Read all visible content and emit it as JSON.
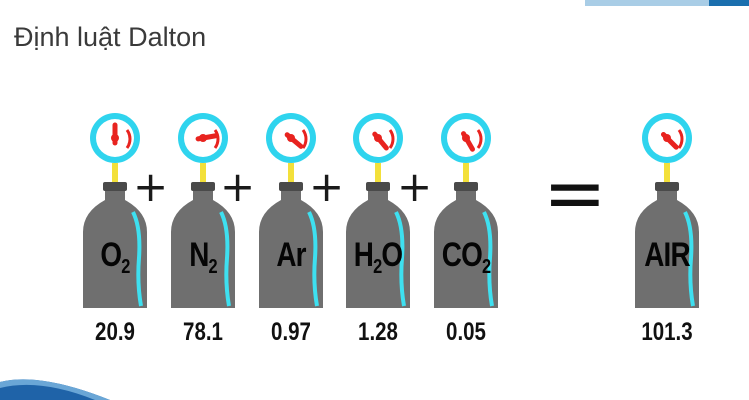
{
  "title": "Định luật Dalton",
  "colors": {
    "gauge_ring": "#2fd4ee",
    "gauge_face": "#ffffff",
    "needle": "#e8231f",
    "stem": "#f3e03a",
    "bottle": "#6f6f6f",
    "highlight": "#3ee0f0",
    "top_bar_left": "#a9cde6",
    "top_bar_right": "#1a6fae",
    "corner_swoosh": "#1f63a8"
  },
  "gases": [
    {
      "formula": "O",
      "sub": "2",
      "suffix": "",
      "value": "20.9",
      "icon": "pressure-gauge-icon"
    },
    {
      "formula": "N",
      "sub": "2",
      "suffix": "",
      "value": "78.1",
      "icon": "pressure-gauge-icon"
    },
    {
      "formula": "Ar",
      "sub": "",
      "suffix": "",
      "value": "0.97",
      "icon": "pressure-gauge-icon"
    },
    {
      "formula": "H",
      "sub": "2",
      "suffix": "O",
      "value": "1.28",
      "icon": "pressure-gauge-icon"
    },
    {
      "formula": "CO",
      "sub": "2",
      "suffix": "",
      "value": "0.05",
      "icon": "pressure-gauge-icon"
    }
  ],
  "operators": {
    "plus": "+",
    "equals": "="
  },
  "result": {
    "formula": "AIR",
    "sub": "",
    "suffix": "",
    "value": "101.3",
    "icon": "pressure-gauge-icon"
  }
}
